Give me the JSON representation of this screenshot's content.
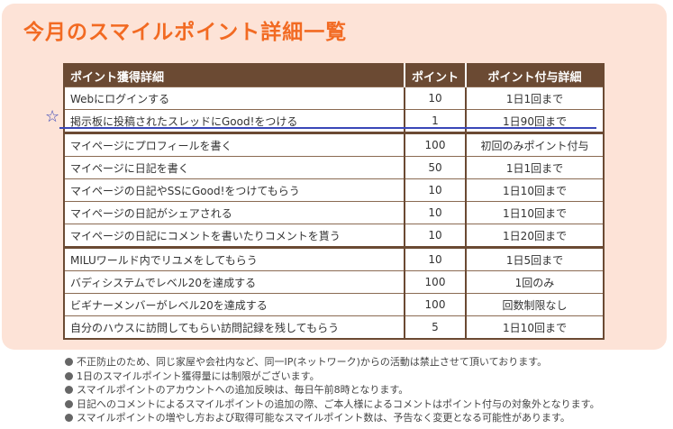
{
  "title": "今月のスマイルポイント詳細一覧",
  "table": {
    "headers": [
      "ポイント獲得詳細",
      "ポイント",
      "ポイント付与詳細"
    ],
    "rows": [
      {
        "detail": "Webにログインする",
        "points": "10",
        "limit": "1日1回まで"
      },
      {
        "detail": "掲示板に投稿されたスレッドにGood!をつける",
        "points": "1",
        "limit": "1日90回まで"
      },
      {
        "detail": "マイページにプロフィールを書く",
        "points": "100",
        "limit": "初回のみポイント付与"
      },
      {
        "detail": "マイページに日記を書く",
        "points": "50",
        "limit": "1日1回まで"
      },
      {
        "detail": "マイページの日記やSSにGood!をつけてもらう",
        "points": "10",
        "limit": "1日10回まで"
      },
      {
        "detail": "マイページの日記がシェアされる",
        "points": "10",
        "limit": "1日10回まで"
      },
      {
        "detail": "マイページの日記にコメントを書いたりコメントを貰う",
        "points": "10",
        "limit": "1日20回まで"
      },
      {
        "detail": "MILUワールド内でリユメをしてもらう",
        "points": "10",
        "limit": "1日5回まで"
      },
      {
        "detail": "バディシステムでレベル20を達成する",
        "points": "100",
        "limit": "1回のみ"
      },
      {
        "detail": "ビギナーメンバーがレベル20を達成する",
        "points": "100",
        "limit": "回数制限なし"
      },
      {
        "detail": "自分のハウスに訪問してもらい訪問記録を残してもらう",
        "points": "5",
        "limit": "1日10回まで"
      }
    ]
  },
  "highlight_marker": "☆",
  "notes": [
    "不正防止のため、同じ家屋や会社内など、同一IP(ネットワーク)からの活動は禁止させて頂いております。",
    "1日のスマイルポイント獲得量には制限がございます。",
    "スマイルポイントのアカウントへの追加反映は、毎日午前8時となります。",
    "日記へのコメントによるスマイルポイントの追加の際、ご本人様によるコメントはポイント付与の対象外となります。",
    "スマイルポイントの増やし方および取得可能なスマイルポイント数は、予告なく変更となる可能性があります。"
  ],
  "colors": {
    "title": "#f26a22",
    "panel": "#fde3d7",
    "table_header": "#6b4a33",
    "highlight": "#3a47b8"
  }
}
